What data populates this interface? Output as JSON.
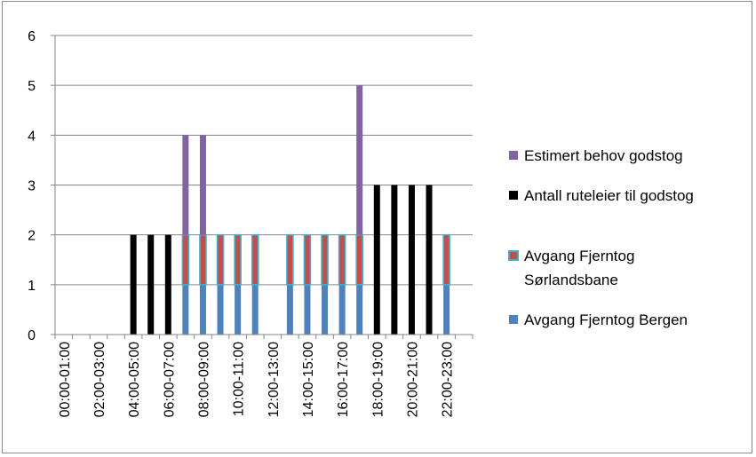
{
  "chart_data": {
    "type": "bar",
    "stacked": true,
    "title": "",
    "xlabel": "",
    "ylabel": "",
    "ylim": [
      0,
      6
    ],
    "yticks": [
      "0",
      "1",
      "2",
      "3",
      "4",
      "5",
      "6"
    ],
    "grid": true,
    "legend_position": "right",
    "categories": [
      "00:00-01:00",
      "01:00-02:00",
      "02:00-03:00",
      "03:00-04:00",
      "04:00-05:00",
      "05:00-06:00",
      "06:00-07:00",
      "07:00-08:00",
      "08:00-09:00",
      "09:00-10:00",
      "10:00-11:00",
      "11:00-12:00",
      "12:00-13:00",
      "13:00-14:00",
      "14:00-15:00",
      "15:00-16:00",
      "16:00-17:00",
      "17:00-18:00",
      "18:00-19:00",
      "19:00-20:00",
      "20:00-21:00",
      "21:00-22:00",
      "22:00-23:00",
      "23:00-24:00"
    ],
    "visible_tick_labels": [
      "00:00-01:00",
      "02:00-03:00",
      "04:00-05:00",
      "06:00-07:00",
      "08:00-09:00",
      "10:00-11:00",
      "12:00-13:00",
      "14:00-15:00",
      "16:00-17:00",
      "18:00-19:00",
      "20:00-21:00",
      "22:00-23:00"
    ],
    "series": [
      {
        "name": "Avgang Fjerntog Bergen",
        "color": "#4f81bd",
        "values": [
          0,
          0,
          0,
          0,
          0,
          0,
          0,
          1,
          1,
          1,
          1,
          1,
          0,
          1,
          1,
          1,
          1,
          1,
          0,
          0,
          0,
          0,
          1,
          0
        ]
      },
      {
        "name": "Avgang Fjerntog Sørlandsbane",
        "color": "#c0504d",
        "border": "#4bacc6",
        "values": [
          0,
          0,
          0,
          0,
          0,
          0,
          0,
          1,
          1,
          1,
          1,
          1,
          0,
          1,
          1,
          1,
          1,
          1,
          0,
          0,
          0,
          0,
          1,
          0
        ]
      },
      {
        "name": "Antall ruteleier til godstog",
        "color": "#000000",
        "values": [
          0,
          0,
          0,
          0,
          2,
          2,
          2,
          0,
          0,
          0,
          0,
          0,
          0,
          0,
          0,
          0,
          0,
          0,
          3,
          3,
          3,
          3,
          0,
          0
        ]
      },
      {
        "name": "Estimert behov godstog",
        "color": "#8064a2",
        "values": [
          0,
          0,
          0,
          0,
          0,
          0,
          0,
          2,
          2,
          0,
          0,
          0,
          0,
          0,
          0,
          0,
          0,
          3,
          0,
          0,
          0,
          0,
          0,
          0
        ]
      }
    ],
    "legend_order": [
      3,
      2,
      1,
      0
    ],
    "legend_lines": [
      [
        "Estimert behov godstog"
      ],
      [
        "Antall ruteleier til godstog"
      ],
      [
        "Avgang Fjerntog",
        "Sørlandsbane"
      ],
      [
        "Avgang Fjerntog Bergen"
      ]
    ]
  }
}
